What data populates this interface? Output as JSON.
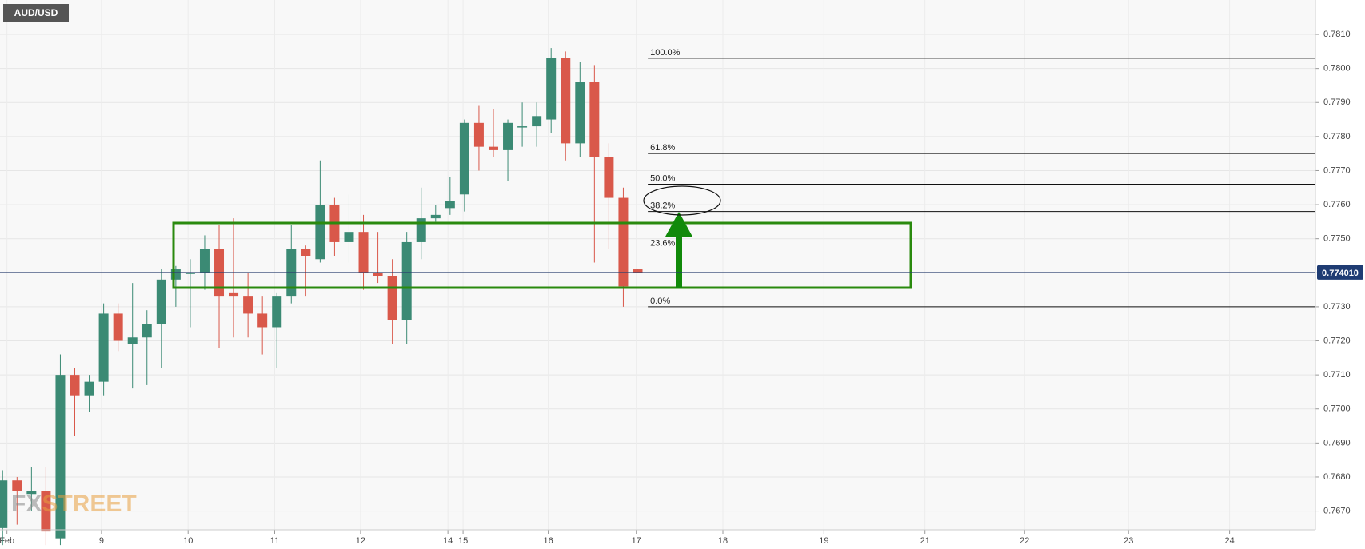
{
  "chart_data": {
    "type": "candlestick",
    "title": "AUD/USD",
    "watermark": {
      "left": "FX",
      "right": "STREET"
    },
    "up_color": "#3b8a74",
    "down_color": "#d9584a",
    "x": [
      0,
      1,
      2,
      3,
      4,
      5,
      6,
      7,
      8,
      9,
      10,
      11,
      12,
      13,
      14,
      15,
      16,
      17,
      18,
      19,
      20,
      21,
      22,
      23,
      24,
      25,
      26,
      27,
      28,
      29,
      30,
      31,
      32,
      33,
      34,
      35,
      36,
      37,
      38,
      39,
      40,
      41,
      42,
      43,
      44
    ],
    "open": [
      0.7665,
      0.7679,
      0.7675,
      0.7676,
      0.7662,
      0.771,
      0.7704,
      0.7708,
      0.7728,
      0.7719,
      0.7721,
      0.7725,
      0.7738,
      0.774,
      0.774,
      0.7747,
      0.7734,
      0.7733,
      0.7728,
      0.7724,
      0.7733,
      0.7747,
      0.7744,
      0.776,
      0.7749,
      0.7752,
      0.774,
      0.7739,
      0.7726,
      0.7749,
      0.7756,
      0.7759,
      0.7763,
      0.7784,
      0.7777,
      0.7776,
      0.7783,
      0.7783,
      0.7785,
      0.7803,
      0.7778,
      0.7796,
      0.7774,
      0.7762,
      0.7741
    ],
    "high": [
      0.7682,
      0.768,
      0.7683,
      0.7683,
      0.7716,
      0.7712,
      0.771,
      0.7731,
      0.7731,
      0.7737,
      0.7729,
      0.7741,
      0.7742,
      0.7744,
      0.7751,
      0.7754,
      0.7756,
      0.774,
      0.7733,
      0.7734,
      0.7754,
      0.7748,
      0.7773,
      0.7762,
      0.7763,
      0.7757,
      0.7752,
      0.7744,
      0.7752,
      0.7765,
      0.776,
      0.7768,
      0.7785,
      0.7789,
      0.7788,
      0.7785,
      0.779,
      0.779,
      0.7806,
      0.7805,
      0.7802,
      0.7801,
      0.7778,
      0.7765,
      0.7741
    ],
    "low": [
      0.766,
      0.7666,
      0.767,
      0.766,
      0.766,
      0.7692,
      0.7699,
      0.7704,
      0.7717,
      0.7706,
      0.7707,
      0.7712,
      0.773,
      0.7724,
      0.7735,
      0.7718,
      0.7721,
      0.7721,
      0.7716,
      0.7712,
      0.7731,
      0.7733,
      0.7743,
      0.7745,
      0.7743,
      0.7735,
      0.7737,
      0.7719,
      0.7719,
      0.7744,
      0.7755,
      0.7757,
      0.7758,
      0.777,
      0.7774,
      0.7767,
      0.7777,
      0.7777,
      0.7781,
      0.7773,
      0.7774,
      0.7743,
      0.7747,
      0.773,
      0.774
    ],
    "close": [
      0.7679,
      0.7676,
      0.7676,
      0.7664,
      0.771,
      0.7704,
      0.7708,
      0.7728,
      0.772,
      0.7721,
      0.7725,
      0.7738,
      0.7741,
      0.774,
      0.7747,
      0.7733,
      0.7733,
      0.7728,
      0.7724,
      0.7733,
      0.7747,
      0.7745,
      0.776,
      0.7749,
      0.7752,
      0.774,
      0.7739,
      0.7726,
      0.7749,
      0.7756,
      0.7757,
      0.7761,
      0.7784,
      0.7777,
      0.7776,
      0.7784,
      0.7783,
      0.7786,
      0.7803,
      0.7778,
      0.7796,
      0.7774,
      0.7762,
      0.7736,
      0.774
    ],
    "xlim": [
      -0.18,
      90.95
    ],
    "xticks": [
      {
        "value": 0.3,
        "label": "Feb"
      },
      {
        "value": 6.85,
        "label": "9"
      },
      {
        "value": 12.85,
        "label": "10"
      },
      {
        "value": 18.85,
        "label": "11"
      },
      {
        "value": 24.8,
        "label": "12"
      },
      {
        "value": 30.85,
        "label": "14"
      },
      {
        "value": 31.9,
        "label": "15"
      },
      {
        "value": 37.8,
        "label": "16"
      },
      {
        "value": 43.9,
        "label": "17"
      },
      {
        "value": 49.9,
        "label": "18"
      },
      {
        "value": 56.9,
        "label": "19"
      },
      {
        "value": 63.9,
        "label": "21"
      },
      {
        "value": 70.8,
        "label": "22"
      },
      {
        "value": 78,
        "label": "23"
      },
      {
        "value": 85,
        "label": "24"
      }
    ],
    "ylim": [
      0.76645,
      0.78201
    ],
    "yticks": [
      {
        "value": 0.767,
        "label": "0.7670"
      },
      {
        "value": 0.768,
        "label": "0.7680"
      },
      {
        "value": 0.769,
        "label": "0.7690"
      },
      {
        "value": 0.77,
        "label": "0.7700"
      },
      {
        "value": 0.771,
        "label": "0.7710"
      },
      {
        "value": 0.772,
        "label": "0.7720"
      },
      {
        "value": 0.773,
        "label": "0.7730"
      },
      {
        "value": 0.774,
        "label": "0.7740"
      },
      {
        "value": 0.775,
        "label": "0.7750"
      },
      {
        "value": 0.776,
        "label": "0.7760"
      },
      {
        "value": 0.777,
        "label": "0.7770"
      },
      {
        "value": 0.778,
        "label": "0.7780"
      },
      {
        "value": 0.779,
        "label": "0.7790"
      },
      {
        "value": 0.78,
        "label": "0.7800"
      },
      {
        "value": 0.781,
        "label": "0.7810"
      }
    ],
    "grid": true,
    "last_price": {
      "value": 0.77401,
      "label": "0.774010"
    },
    "fib_start_x": 44.7,
    "fib_levels": [
      {
        "label": "100.0%",
        "price": 0.7803
      },
      {
        "label": "61.8%",
        "price": 0.7775
      },
      {
        "label": "50.0%",
        "price": 0.7766
      },
      {
        "label": "38.2%",
        "price": 0.7758
      },
      {
        "label": "23.6%",
        "price": 0.7747
      },
      {
        "label": "0.0%",
        "price": 0.773
      }
    ]
  }
}
